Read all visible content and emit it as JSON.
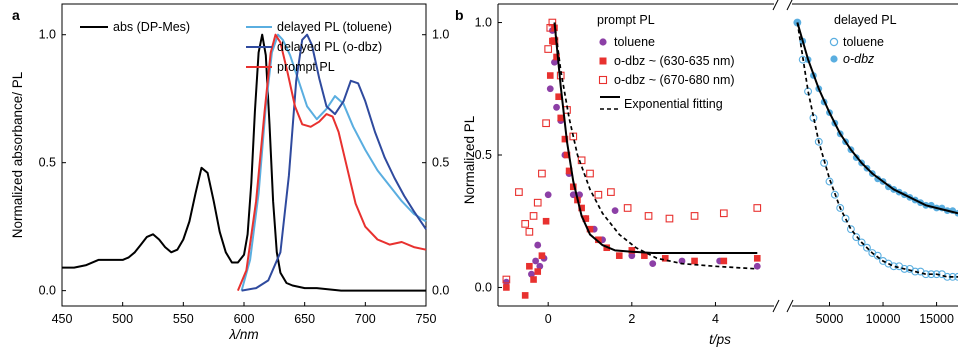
{
  "chart_data": [
    {
      "panel": "a",
      "type": "line",
      "xlabel": "λ/nm",
      "ylabel": "Normalized absorbance/ PL",
      "xlim": [
        450,
        750
      ],
      "ylim": [
        -0.06,
        1.12
      ],
      "xticks": [
        450,
        500,
        550,
        600,
        650,
        700,
        750
      ],
      "yticks_left": [
        "0.0",
        "0.5",
        "1.0"
      ],
      "yticks_right": [
        "0.0",
        "0.5",
        "1.0"
      ],
      "yticks_values": [
        0.0,
        0.5,
        1.0
      ],
      "legend_position": "top",
      "series": [
        {
          "name": "abs (DP-Mes)",
          "color": "#000000",
          "x": [
            450,
            460,
            470,
            480,
            490,
            500,
            505,
            510,
            515,
            520,
            525,
            530,
            535,
            540,
            545,
            550,
            555,
            560,
            565,
            570,
            575,
            580,
            585,
            590,
            595,
            600,
            603,
            606,
            609,
            612,
            615,
            618,
            621,
            624,
            627,
            630,
            635,
            640,
            650,
            660,
            680,
            700,
            720,
            750
          ],
          "y": [
            0.09,
            0.09,
            0.1,
            0.12,
            0.12,
            0.12,
            0.13,
            0.15,
            0.18,
            0.21,
            0.22,
            0.2,
            0.17,
            0.15,
            0.16,
            0.2,
            0.27,
            0.38,
            0.48,
            0.46,
            0.35,
            0.23,
            0.15,
            0.11,
            0.11,
            0.14,
            0.22,
            0.42,
            0.7,
            0.93,
            1.0,
            0.92,
            0.65,
            0.35,
            0.15,
            0.07,
            0.03,
            0.02,
            0.01,
            0.01,
            0.0,
            0.0,
            0.0,
            0.0
          ]
        },
        {
          "name": "delayed PL (toluene)",
          "color": "#5aaee0",
          "x": [
            598,
            605,
            612,
            618,
            623,
            628,
            632,
            638,
            645,
            652,
            660,
            668,
            675,
            682,
            690,
            700,
            710,
            720,
            730,
            740,
            750
          ],
          "y": [
            0.0,
            0.12,
            0.38,
            0.72,
            0.93,
            1.0,
            0.98,
            0.92,
            0.82,
            0.72,
            0.67,
            0.71,
            0.76,
            0.73,
            0.64,
            0.55,
            0.47,
            0.41,
            0.35,
            0.3,
            0.27
          ]
        },
        {
          "name": "delayed PL (o-dbz)",
          "color": "#2f4a9e",
          "x": [
            598,
            610,
            620,
            630,
            637,
            643,
            648,
            652,
            656,
            662,
            668,
            675,
            682,
            688,
            694,
            700,
            708,
            716,
            724,
            732,
            740,
            750
          ],
          "y": [
            0.0,
            0.01,
            0.04,
            0.15,
            0.45,
            0.82,
            0.98,
            1.0,
            0.96,
            0.83,
            0.72,
            0.69,
            0.74,
            0.82,
            0.81,
            0.74,
            0.62,
            0.52,
            0.44,
            0.37,
            0.31,
            0.24
          ]
        },
        {
          "name": "prompt PL",
          "color": "#e8312f",
          "x": [
            595,
            602,
            610,
            617,
            622,
            626,
            630,
            636,
            642,
            648,
            655,
            662,
            668,
            673,
            678,
            685,
            692,
            700,
            710,
            720,
            730,
            740,
            750
          ],
          "y": [
            0.0,
            0.08,
            0.35,
            0.7,
            0.93,
            1.0,
            0.97,
            0.85,
            0.72,
            0.65,
            0.64,
            0.66,
            0.69,
            0.68,
            0.62,
            0.48,
            0.34,
            0.25,
            0.2,
            0.18,
            0.19,
            0.17,
            0.16
          ]
        }
      ]
    },
    {
      "panel": "b",
      "type": "scatter",
      "xlabel": "t/ps",
      "ylabel": "Normalized PL",
      "left_xlim": [
        -1.2,
        5.4
      ],
      "left_xticks": [
        0,
        2,
        4
      ],
      "right_xlim": [
        1500,
        17000
      ],
      "right_xticks": [
        5000,
        10000,
        15000
      ],
      "ylim": [
        -0.07,
        1.07
      ],
      "yticks": [
        0.0,
        0.5,
        1.0
      ],
      "ytick_labels": [
        "0.0",
        "0.5",
        "1.0"
      ],
      "legend_left_title": "prompt PL",
      "legend_right_title": "delayed PL",
      "series": [
        {
          "name": "toluene",
          "group": "prompt",
          "marker": "circle-filled",
          "color": "#8c3fa6",
          "x": [
            -1.0,
            -0.4,
            -0.3,
            -0.25,
            -0.2,
            -0.1,
            0.0,
            0.05,
            0.1,
            0.15,
            0.2,
            0.3,
            0.4,
            0.5,
            0.6,
            0.75,
            0.9,
            1.1,
            1.3,
            1.6,
            2.0,
            2.5,
            3.2,
            4.1,
            5.0
          ],
          "y": [
            0.02,
            0.05,
            0.1,
            0.16,
            0.08,
            0.11,
            0.35,
            0.75,
            0.97,
            0.85,
            0.68,
            0.63,
            0.5,
            0.43,
            0.35,
            0.35,
            0.26,
            0.22,
            0.18,
            0.29,
            0.12,
            0.09,
            0.1,
            0.1,
            0.08
          ]
        },
        {
          "name": "o-dbz ~ (630-635 nm)",
          "group": "prompt",
          "marker": "square-filled",
          "color": "#e8312f",
          "x": [
            -1.0,
            -0.55,
            -0.45,
            -0.35,
            -0.25,
            -0.15,
            -0.05,
            0.05,
            0.1,
            0.15,
            0.2,
            0.25,
            0.3,
            0.4,
            0.45,
            0.5,
            0.6,
            0.7,
            0.8,
            0.9,
            1.0,
            1.2,
            1.4,
            1.7,
            2.0,
            2.3,
            2.8,
            3.5,
            4.2,
            5.0
          ],
          "y": [
            0.0,
            -0.03,
            0.08,
            0.03,
            0.06,
            0.12,
            0.25,
            0.8,
            0.93,
            0.98,
            0.87,
            0.72,
            0.64,
            0.56,
            0.5,
            0.44,
            0.38,
            0.33,
            0.3,
            0.26,
            0.22,
            0.18,
            0.15,
            0.12,
            0.14,
            0.12,
            0.11,
            0.1,
            0.1,
            0.11
          ]
        },
        {
          "name": "o-dbz ~ (670-680 nm)",
          "group": "prompt",
          "marker": "square-open",
          "color": "#e8312f",
          "x": [
            -1.0,
            -0.7,
            -0.55,
            -0.45,
            -0.35,
            -0.25,
            -0.15,
            -0.05,
            0.0,
            0.05,
            0.1,
            0.15,
            0.3,
            0.45,
            0.6,
            0.8,
            1.0,
            1.2,
            1.5,
            1.9,
            2.4,
            2.9,
            3.5,
            4.2,
            5.0
          ],
          "y": [
            0.03,
            0.36,
            0.24,
            0.21,
            0.27,
            0.32,
            0.43,
            0.62,
            0.9,
            0.98,
            1.0,
            0.93,
            0.8,
            0.67,
            0.57,
            0.48,
            0.43,
            0.35,
            0.36,
            0.3,
            0.27,
            0.26,
            0.27,
            0.28,
            0.3
          ]
        },
        {
          "name": "Exponential fitting",
          "group": "prompt",
          "marker": "line-solid",
          "color": "#000000",
          "x": [
            0.15,
            0.3,
            0.45,
            0.6,
            0.8,
            1.0,
            1.3,
            1.6,
            2.0,
            2.5,
            3.0,
            4.0,
            5.0
          ],
          "y": [
            1.0,
            0.76,
            0.55,
            0.4,
            0.27,
            0.2,
            0.16,
            0.14,
            0.135,
            0.13,
            0.13,
            0.13,
            0.13
          ]
        },
        {
          "name": "Exponential fitting (dashed)",
          "group": "prompt",
          "marker": "line-dashed",
          "color": "#000000",
          "x": [
            0.15,
            0.3,
            0.5,
            0.7,
            1.0,
            1.3,
            1.7,
            2.1,
            2.6,
            3.2,
            4.0,
            5.0
          ],
          "y": [
            1.0,
            0.82,
            0.64,
            0.5,
            0.37,
            0.28,
            0.2,
            0.15,
            0.11,
            0.09,
            0.08,
            0.07
          ]
        },
        {
          "name": "toluene",
          "group": "delayed",
          "marker": "circle-open",
          "color": "#5aaee0",
          "x": [
            2000,
            2500,
            3000,
            3500,
            4000,
            4500,
            5000,
            5500,
            6000,
            6500,
            7000,
            7500,
            8000,
            8500,
            9000,
            9500,
            10000,
            10500,
            11000,
            11500,
            12000,
            12500,
            13000,
            13500,
            14000,
            14500,
            15000,
            15500,
            16000,
            16500,
            17000
          ],
          "y": [
            1.0,
            0.86,
            0.74,
            0.64,
            0.55,
            0.47,
            0.4,
            0.35,
            0.3,
            0.26,
            0.22,
            0.19,
            0.17,
            0.15,
            0.13,
            0.12,
            0.1,
            0.09,
            0.08,
            0.08,
            0.07,
            0.07,
            0.06,
            0.06,
            0.05,
            0.05,
            0.05,
            0.05,
            0.04,
            0.04,
            0.04
          ]
        },
        {
          "name": "o-dbz",
          "group": "delayed",
          "marker": "circle-filled",
          "color": "#5aaee0",
          "x": [
            2000,
            2500,
            3000,
            3500,
            4000,
            4500,
            5000,
            5500,
            6000,
            6500,
            7000,
            7500,
            8000,
            8500,
            9000,
            9500,
            10000,
            10500,
            11000,
            11500,
            12000,
            12500,
            13000,
            13500,
            14000,
            14500,
            15000,
            15500,
            16000,
            16500,
            17000
          ],
          "y": [
            1.0,
            0.93,
            0.86,
            0.8,
            0.75,
            0.7,
            0.66,
            0.62,
            0.58,
            0.55,
            0.52,
            0.49,
            0.47,
            0.45,
            0.43,
            0.41,
            0.4,
            0.38,
            0.37,
            0.36,
            0.35,
            0.34,
            0.33,
            0.32,
            0.31,
            0.31,
            0.3,
            0.3,
            0.29,
            0.29,
            0.28
          ]
        },
        {
          "name": "fit toluene",
          "group": "delayed",
          "marker": "line-dashed",
          "color": "#000000",
          "x": [
            2000,
            3000,
            4000,
            5000,
            6000,
            7000,
            8000,
            9000,
            10000,
            11000,
            12000,
            13000,
            14000,
            15000,
            16000,
            17000
          ],
          "y": [
            1.0,
            0.74,
            0.55,
            0.41,
            0.3,
            0.22,
            0.17,
            0.13,
            0.1,
            0.08,
            0.07,
            0.06,
            0.05,
            0.05,
            0.04,
            0.04
          ]
        },
        {
          "name": "fit o-dbz",
          "group": "delayed",
          "marker": "line-solid",
          "color": "#000000",
          "x": [
            2000,
            3000,
            4000,
            5000,
            6000,
            7000,
            8000,
            9000,
            10000,
            11000,
            12000,
            13000,
            14000,
            15000,
            16000,
            17000
          ],
          "y": [
            1.0,
            0.86,
            0.75,
            0.66,
            0.58,
            0.52,
            0.47,
            0.43,
            0.4,
            0.37,
            0.35,
            0.33,
            0.31,
            0.3,
            0.29,
            0.28
          ]
        }
      ]
    }
  ]
}
